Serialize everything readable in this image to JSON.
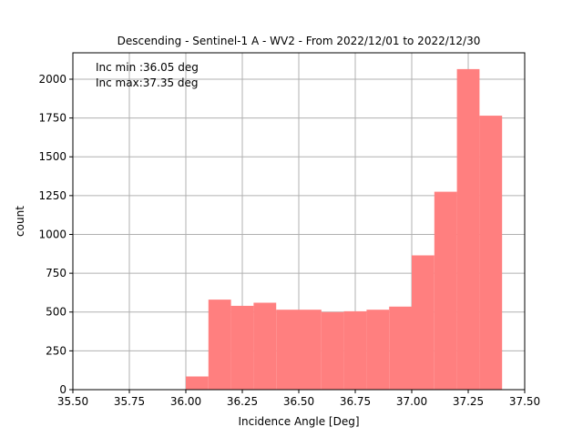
{
  "chart_data": {
    "type": "bar",
    "title": "Descending - Sentinel-1 A - WV2 - From 2022/12/01 to 2022/12/30",
    "xlabel": "Incidence Angle [Deg]",
    "ylabel": "count",
    "xlim": [
      35.5,
      37.5
    ],
    "ylim": [
      0,
      2170
    ],
    "xticks": [
      35.5,
      35.75,
      36.0,
      36.25,
      36.5,
      36.75,
      37.0,
      37.25,
      37.5
    ],
    "xtick_labels": [
      "35.50",
      "35.75",
      "36.00",
      "36.25",
      "36.50",
      "36.75",
      "37.00",
      "37.25",
      "37.50"
    ],
    "yticks": [
      0,
      250,
      500,
      750,
      1000,
      1250,
      1500,
      1750,
      2000
    ],
    "ytick_labels": [
      "0",
      "250",
      "500",
      "750",
      "1000",
      "1250",
      "1500",
      "1750",
      "2000"
    ],
    "grid": true,
    "bar_color": "#ff7f7f",
    "bins": [
      {
        "x0": 36.0,
        "x1": 36.1,
        "value": 85
      },
      {
        "x0": 36.1,
        "x1": 36.2,
        "value": 580
      },
      {
        "x0": 36.2,
        "x1": 36.3,
        "value": 540
      },
      {
        "x0": 36.3,
        "x1": 36.4,
        "value": 560
      },
      {
        "x0": 36.4,
        "x1": 36.5,
        "value": 515
      },
      {
        "x0": 36.5,
        "x1": 36.6,
        "value": 515
      },
      {
        "x0": 36.6,
        "x1": 36.7,
        "value": 500
      },
      {
        "x0": 36.7,
        "x1": 36.8,
        "value": 505
      },
      {
        "x0": 36.8,
        "x1": 36.9,
        "value": 515
      },
      {
        "x0": 36.9,
        "x1": 37.0,
        "value": 535
      },
      {
        "x0": 37.0,
        "x1": 37.1,
        "value": 865
      },
      {
        "x0": 37.1,
        "x1": 37.2,
        "value": 1275
      },
      {
        "x0": 37.2,
        "x1": 37.3,
        "value": 2065
      },
      {
        "x0": 37.3,
        "x1": 37.4,
        "value": 1765
      }
    ],
    "annotations": [
      "Inc min :36.05 deg",
      "Inc max:37.35 deg"
    ]
  }
}
